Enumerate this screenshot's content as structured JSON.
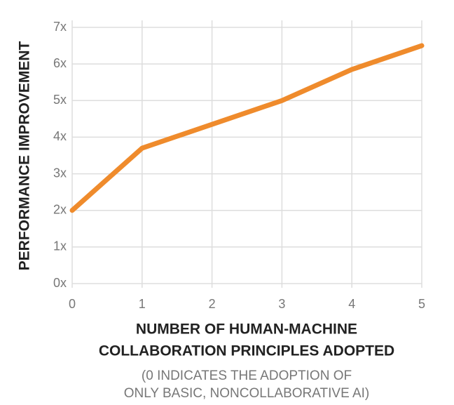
{
  "chart_data": {
    "type": "line",
    "ylabel": "PERFORMANCE IMPROVEMENT",
    "xlabel": [
      "NUMBER OF HUMAN-MACHINE",
      "COLLABORATION PRINCIPLES ADOPTED"
    ],
    "note": [
      "(0 INDICATES THE ADOPTION OF",
      "ONLY BASIC, NONCOLLABORATIVE AI)"
    ],
    "x": [
      0,
      1,
      2,
      3,
      4,
      5
    ],
    "series": [
      {
        "color": "#ef8b2c",
        "values": [
          2,
          3.7,
          4.35,
          5,
          5.85,
          6.5
        ]
      }
    ],
    "xlim": [
      0,
      5
    ],
    "xticks": [
      0,
      1,
      2,
      3,
      4,
      5
    ],
    "ylim": [
      0,
      7
    ],
    "yticks": [
      {
        "value": 0,
        "label": "0x"
      },
      {
        "value": 1,
        "label": "1x"
      },
      {
        "value": 2,
        "label": "2x"
      },
      {
        "value": 3,
        "label": "3x"
      },
      {
        "value": 4,
        "label": "4x"
      },
      {
        "value": 5,
        "label": "5x"
      },
      {
        "value": 6,
        "label": "6x"
      },
      {
        "value": 7,
        "label": "7x"
      }
    ],
    "grid": true
  }
}
